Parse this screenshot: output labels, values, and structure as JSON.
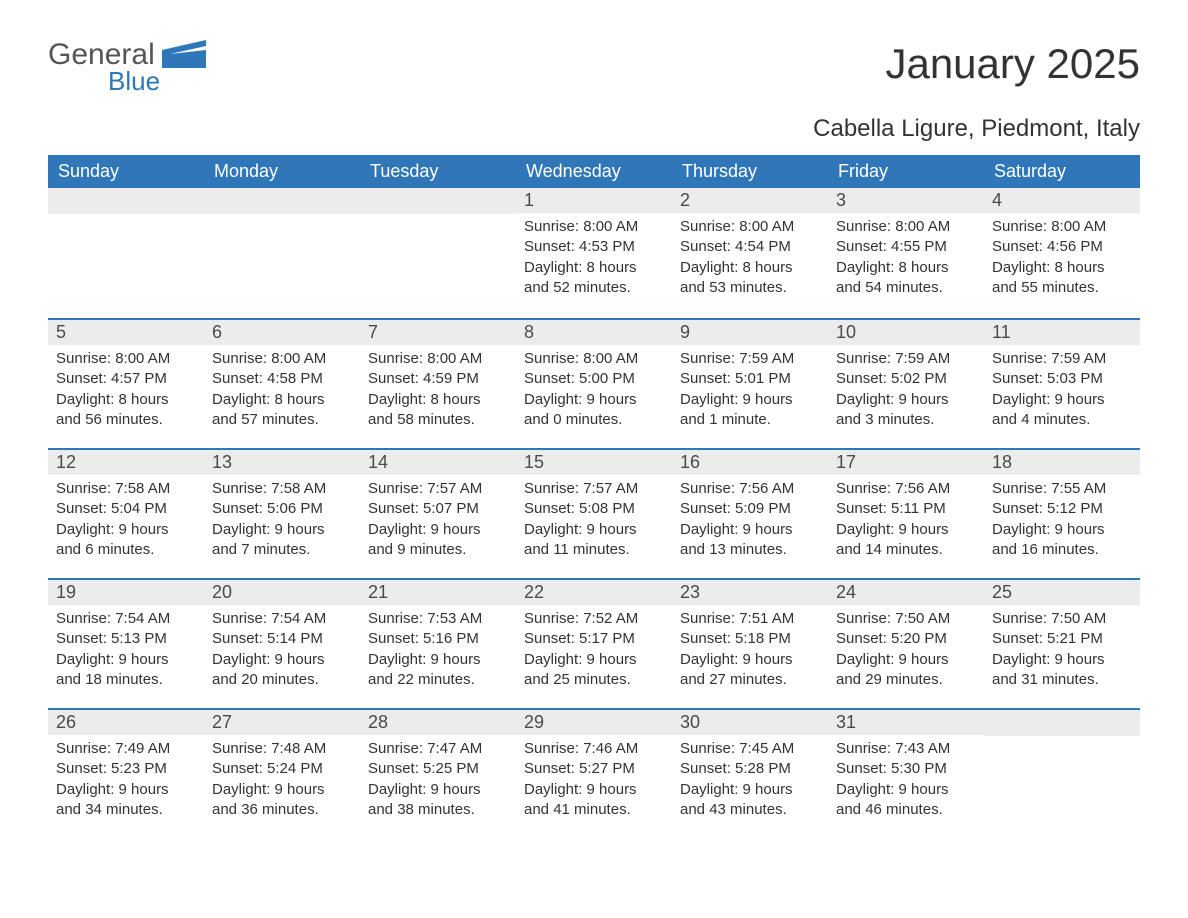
{
  "logo": {
    "word1": "General",
    "word2": "Blue"
  },
  "title": "January 2025",
  "subtitle": "Cabella Ligure, Piedmont, Italy",
  "colors": {
    "header_bg": "#2f77b8",
    "header_text": "#ffffff",
    "daynum_bg": "#ececec",
    "text": "#333333",
    "page_bg": "#ffffff"
  },
  "dayHeaders": [
    "Sunday",
    "Monday",
    "Tuesday",
    "Wednesday",
    "Thursday",
    "Friday",
    "Saturday"
  ],
  "weeks": [
    [
      null,
      null,
      null,
      {
        "n": "1",
        "sr": "Sunrise: 8:00 AM",
        "ss": "Sunset: 4:53 PM",
        "d1": "Daylight: 8 hours",
        "d2": "and 52 minutes."
      },
      {
        "n": "2",
        "sr": "Sunrise: 8:00 AM",
        "ss": "Sunset: 4:54 PM",
        "d1": "Daylight: 8 hours",
        "d2": "and 53 minutes."
      },
      {
        "n": "3",
        "sr": "Sunrise: 8:00 AM",
        "ss": "Sunset: 4:55 PM",
        "d1": "Daylight: 8 hours",
        "d2": "and 54 minutes."
      },
      {
        "n": "4",
        "sr": "Sunrise: 8:00 AM",
        "ss": "Sunset: 4:56 PM",
        "d1": "Daylight: 8 hours",
        "d2": "and 55 minutes."
      }
    ],
    [
      {
        "n": "5",
        "sr": "Sunrise: 8:00 AM",
        "ss": "Sunset: 4:57 PM",
        "d1": "Daylight: 8 hours",
        "d2": "and 56 minutes."
      },
      {
        "n": "6",
        "sr": "Sunrise: 8:00 AM",
        "ss": "Sunset: 4:58 PM",
        "d1": "Daylight: 8 hours",
        "d2": "and 57 minutes."
      },
      {
        "n": "7",
        "sr": "Sunrise: 8:00 AM",
        "ss": "Sunset: 4:59 PM",
        "d1": "Daylight: 8 hours",
        "d2": "and 58 minutes."
      },
      {
        "n": "8",
        "sr": "Sunrise: 8:00 AM",
        "ss": "Sunset: 5:00 PM",
        "d1": "Daylight: 9 hours",
        "d2": "and 0 minutes."
      },
      {
        "n": "9",
        "sr": "Sunrise: 7:59 AM",
        "ss": "Sunset: 5:01 PM",
        "d1": "Daylight: 9 hours",
        "d2": "and 1 minute."
      },
      {
        "n": "10",
        "sr": "Sunrise: 7:59 AM",
        "ss": "Sunset: 5:02 PM",
        "d1": "Daylight: 9 hours",
        "d2": "and 3 minutes."
      },
      {
        "n": "11",
        "sr": "Sunrise: 7:59 AM",
        "ss": "Sunset: 5:03 PM",
        "d1": "Daylight: 9 hours",
        "d2": "and 4 minutes."
      }
    ],
    [
      {
        "n": "12",
        "sr": "Sunrise: 7:58 AM",
        "ss": "Sunset: 5:04 PM",
        "d1": "Daylight: 9 hours",
        "d2": "and 6 minutes."
      },
      {
        "n": "13",
        "sr": "Sunrise: 7:58 AM",
        "ss": "Sunset: 5:06 PM",
        "d1": "Daylight: 9 hours",
        "d2": "and 7 minutes."
      },
      {
        "n": "14",
        "sr": "Sunrise: 7:57 AM",
        "ss": "Sunset: 5:07 PM",
        "d1": "Daylight: 9 hours",
        "d2": "and 9 minutes."
      },
      {
        "n": "15",
        "sr": "Sunrise: 7:57 AM",
        "ss": "Sunset: 5:08 PM",
        "d1": "Daylight: 9 hours",
        "d2": "and 11 minutes."
      },
      {
        "n": "16",
        "sr": "Sunrise: 7:56 AM",
        "ss": "Sunset: 5:09 PM",
        "d1": "Daylight: 9 hours",
        "d2": "and 13 minutes."
      },
      {
        "n": "17",
        "sr": "Sunrise: 7:56 AM",
        "ss": "Sunset: 5:11 PM",
        "d1": "Daylight: 9 hours",
        "d2": "and 14 minutes."
      },
      {
        "n": "18",
        "sr": "Sunrise: 7:55 AM",
        "ss": "Sunset: 5:12 PM",
        "d1": "Daylight: 9 hours",
        "d2": "and 16 minutes."
      }
    ],
    [
      {
        "n": "19",
        "sr": "Sunrise: 7:54 AM",
        "ss": "Sunset: 5:13 PM",
        "d1": "Daylight: 9 hours",
        "d2": "and 18 minutes."
      },
      {
        "n": "20",
        "sr": "Sunrise: 7:54 AM",
        "ss": "Sunset: 5:14 PM",
        "d1": "Daylight: 9 hours",
        "d2": "and 20 minutes."
      },
      {
        "n": "21",
        "sr": "Sunrise: 7:53 AM",
        "ss": "Sunset: 5:16 PM",
        "d1": "Daylight: 9 hours",
        "d2": "and 22 minutes."
      },
      {
        "n": "22",
        "sr": "Sunrise: 7:52 AM",
        "ss": "Sunset: 5:17 PM",
        "d1": "Daylight: 9 hours",
        "d2": "and 25 minutes."
      },
      {
        "n": "23",
        "sr": "Sunrise: 7:51 AM",
        "ss": "Sunset: 5:18 PM",
        "d1": "Daylight: 9 hours",
        "d2": "and 27 minutes."
      },
      {
        "n": "24",
        "sr": "Sunrise: 7:50 AM",
        "ss": "Sunset: 5:20 PM",
        "d1": "Daylight: 9 hours",
        "d2": "and 29 minutes."
      },
      {
        "n": "25",
        "sr": "Sunrise: 7:50 AM",
        "ss": "Sunset: 5:21 PM",
        "d1": "Daylight: 9 hours",
        "d2": "and 31 minutes."
      }
    ],
    [
      {
        "n": "26",
        "sr": "Sunrise: 7:49 AM",
        "ss": "Sunset: 5:23 PM",
        "d1": "Daylight: 9 hours",
        "d2": "and 34 minutes."
      },
      {
        "n": "27",
        "sr": "Sunrise: 7:48 AM",
        "ss": "Sunset: 5:24 PM",
        "d1": "Daylight: 9 hours",
        "d2": "and 36 minutes."
      },
      {
        "n": "28",
        "sr": "Sunrise: 7:47 AM",
        "ss": "Sunset: 5:25 PM",
        "d1": "Daylight: 9 hours",
        "d2": "and 38 minutes."
      },
      {
        "n": "29",
        "sr": "Sunrise: 7:46 AM",
        "ss": "Sunset: 5:27 PM",
        "d1": "Daylight: 9 hours",
        "d2": "and 41 minutes."
      },
      {
        "n": "30",
        "sr": "Sunrise: 7:45 AM",
        "ss": "Sunset: 5:28 PM",
        "d1": "Daylight: 9 hours",
        "d2": "and 43 minutes."
      },
      {
        "n": "31",
        "sr": "Sunrise: 7:43 AM",
        "ss": "Sunset: 5:30 PM",
        "d1": "Daylight: 9 hours",
        "d2": "and 46 minutes."
      },
      null
    ]
  ]
}
